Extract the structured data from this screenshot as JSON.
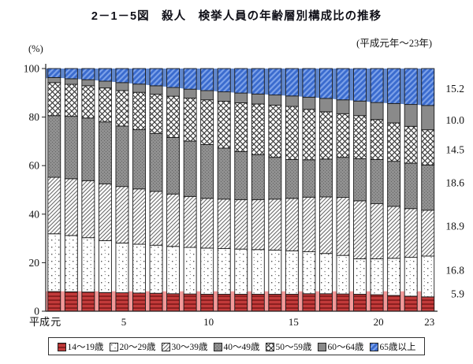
{
  "title": "2－1－5図　殺人　検挙人員の年齢層別構成比の推移",
  "period_note": "(平成元年～23年)",
  "y_axis": {
    "unit_label": "(%)",
    "ticks": [
      0,
      20,
      40,
      60,
      80,
      100
    ],
    "max": 100
  },
  "x_axis": {
    "era_prefix": "平成",
    "labels": [
      {
        "text": "元",
        "year": 1
      },
      {
        "text": "5",
        "year": 5
      },
      {
        "text": "10",
        "year": 10
      },
      {
        "text": "15",
        "year": 15
      },
      {
        "text": "20",
        "year": 20
      },
      {
        "text": "23",
        "year": 23
      }
    ]
  },
  "right_value_labels_top_to_bottom": [
    "15.2",
    "10.0",
    "14.5",
    "18.6",
    "18.9",
    "16.8",
    "5.9"
  ],
  "colors": {
    "juvenile_band": "#F08080",
    "elderly_band": "#4472C4",
    "red_base": "#C23A3A",
    "red_stripe": "#8B2020",
    "blue_base": "#3A6BCE",
    "blue_stripe": "#7BA0E8",
    "gray_solid": "#8A8A8A",
    "gray_texture_base": "#909090",
    "gray_texture_dot": "#636363",
    "hatch_dark": "#3A3A3A",
    "diag_line": "#6A6A6A",
    "dot_color": "#555555",
    "outline": "#1A1A1A",
    "axis": "#222222"
  },
  "chart_data": {
    "type": "bar",
    "stacked": true,
    "percent": true,
    "title": "殺人 検挙人員の年齢層別構成比の推移",
    "ylabel": "(%)",
    "ylim": [
      0,
      100
    ],
    "grid": false,
    "legend_position": "bottom",
    "x_years_heisei": [
      1,
      2,
      3,
      4,
      5,
      6,
      7,
      8,
      9,
      10,
      11,
      12,
      13,
      14,
      15,
      16,
      17,
      18,
      19,
      20,
      21,
      22,
      23
    ],
    "series": [
      {
        "name": "14～19歳",
        "pattern": "red-hstripe",
        "values": [
          8.1,
          8.0,
          7.9,
          7.7,
          7.6,
          7.5,
          7.4,
          7.2,
          7.1,
          7.0,
          7.0,
          7.0,
          7.0,
          7.0,
          7.0,
          7.2,
          7.2,
          7.1,
          7.0,
          6.8,
          6.5,
          6.2,
          5.9
        ]
      },
      {
        "name": "20～29歳",
        "pattern": "dots",
        "values": [
          23.8,
          23.2,
          22.4,
          21.4,
          20.5,
          20.1,
          19.8,
          19.5,
          19.2,
          19.0,
          18.8,
          18.6,
          18.4,
          18.2,
          17.9,
          17.3,
          16.6,
          15.9,
          14.6,
          14.8,
          15.3,
          16.0,
          16.8
        ]
      },
      {
        "name": "30～39歳",
        "pattern": "diagonal",
        "values": [
          23.3,
          23.4,
          23.5,
          23.4,
          23.3,
          22.8,
          22.2,
          21.6,
          21.0,
          20.5,
          20.4,
          20.4,
          20.6,
          21.0,
          21.6,
          22.5,
          23.3,
          23.9,
          23.9,
          22.7,
          21.4,
          20.1,
          18.9
        ]
      },
      {
        "name": "40～49歳",
        "pattern": "gray-texture",
        "values": [
          25.4,
          25.7,
          25.8,
          25.5,
          24.9,
          24.4,
          23.9,
          23.3,
          22.8,
          22.2,
          21.0,
          19.8,
          18.5,
          17.2,
          16.0,
          15.4,
          15.6,
          16.5,
          17.4,
          18.2,
          18.6,
          18.7,
          18.6
        ]
      },
      {
        "name": "50～59歳",
        "pattern": "crosshatch",
        "values": [
          13.6,
          13.2,
          13.3,
          14.0,
          14.6,
          15.4,
          16.1,
          17.0,
          17.7,
          18.4,
          19.3,
          20.1,
          20.9,
          21.5,
          21.9,
          20.8,
          19.5,
          18.0,
          17.7,
          16.5,
          15.8,
          15.2,
          14.5
        ]
      },
      {
        "name": "60～64歳",
        "pattern": "solid-gray",
        "values": [
          2.1,
          2.3,
          2.5,
          2.8,
          3.3,
          3.4,
          3.5,
          3.6,
          3.7,
          3.8,
          3.9,
          4.0,
          4.1,
          4.2,
          4.3,
          5.0,
          5.5,
          5.7,
          6.0,
          7.0,
          8.0,
          9.0,
          10.0
        ]
      },
      {
        "name": "65歳以上",
        "pattern": "blue-diag",
        "values": [
          3.7,
          4.2,
          4.6,
          5.2,
          5.8,
          6.4,
          7.1,
          7.8,
          8.5,
          9.1,
          9.6,
          10.1,
          10.5,
          10.9,
          11.3,
          11.8,
          12.3,
          12.9,
          13.4,
          14.0,
          14.4,
          14.8,
          15.2
        ]
      }
    ],
    "highlight_bands": {
      "bottom": {
        "series": "14～19歳",
        "color": "#F08080",
        "top_percent": 8.2
      },
      "top": {
        "series": "65歳以上",
        "color": "#4472C4"
      }
    },
    "final_year_labels": {
      "year": 23,
      "values_top_to_bottom": [
        15.2,
        10.0,
        14.5,
        18.6,
        18.9,
        16.8,
        5.9
      ]
    }
  }
}
